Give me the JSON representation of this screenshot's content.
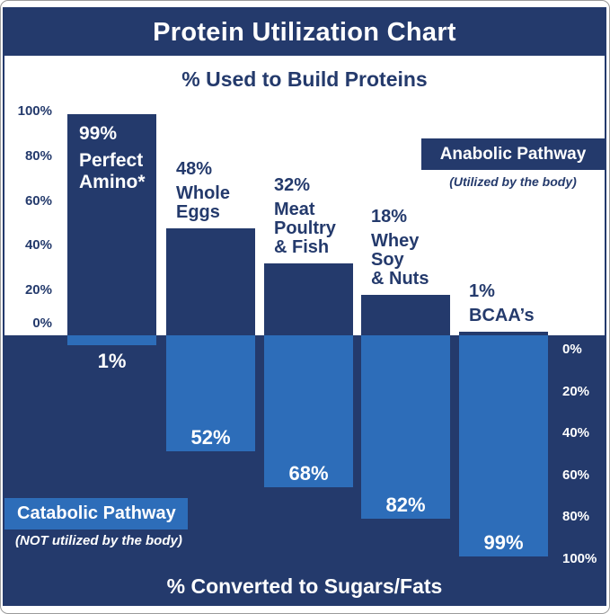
{
  "colors": {
    "navy": "#243a6c",
    "blue": "#2d6db9",
    "white": "#ffffff"
  },
  "header": {
    "title": "Protein Utilization Chart"
  },
  "subtitle": "% Used to Build Proteins",
  "bottom_axis_label": "% Converted to Sugars/Fats",
  "legend": {
    "anabolic": {
      "label": "Anabolic Pathway",
      "caption": "(Utilized by the body)"
    },
    "catabolic": {
      "label": "Catabolic Pathway",
      "caption": "(NOT utilized by the body)"
    }
  },
  "chart_data": {
    "type": "bar",
    "title": "Protein Utilization Chart",
    "top_section_label": "% Used to Build Proteins",
    "bottom_section_label": "% Converted to Sugars/Fats",
    "categories": [
      "Perfect Amino*",
      "Whole Eggs",
      "Meat Poultry & Fish",
      "Whey Soy & Nuts",
      "BCAA’s"
    ],
    "series": [
      {
        "name": "Anabolic Pathway",
        "note": "(Utilized by the body)",
        "values": [
          99,
          48,
          32,
          18,
          1
        ]
      },
      {
        "name": "Catabolic Pathway",
        "note": "(NOT utilized by the body)",
        "values": [
          1,
          52,
          68,
          82,
          99
        ]
      }
    ],
    "bars": [
      {
        "anabolic_label": "99%",
        "name_lines": [
          "Perfect",
          "Amino*"
        ],
        "anabolic": 99,
        "catabolic": 1,
        "catabolic_label": "1%",
        "label_inside": true
      },
      {
        "anabolic_label": "48%",
        "name_lines": [
          "Whole",
          "Eggs"
        ],
        "anabolic": 48,
        "catabolic": 52,
        "catabolic_label": "52%"
      },
      {
        "anabolic_label": "32%",
        "name_lines": [
          "Meat",
          "Poultry",
          "& Fish"
        ],
        "anabolic": 32,
        "catabolic": 68,
        "catabolic_label": "68%"
      },
      {
        "anabolic_label": "18%",
        "name_lines": [
          "Whey",
          "Soy",
          "& Nuts"
        ],
        "anabolic": 18,
        "catabolic": 82,
        "catabolic_label": "82%"
      },
      {
        "anabolic_label": "1%",
        "name_lines": [
          "BCAA’s"
        ],
        "anabolic": 1,
        "catabolic": 99,
        "catabolic_label": "99%"
      }
    ],
    "left_axis_ticks": [
      "100%",
      "80%",
      "60%",
      "40%",
      "20%",
      "0%"
    ],
    "right_axis_ticks": [
      "0%",
      "20%",
      "40%",
      "60%",
      "80%",
      "100%"
    ],
    "left_axis_range": [
      0,
      100
    ],
    "right_axis_range": [
      0,
      100
    ],
    "grid": false,
    "legend_position": {
      "anabolic": "top-right",
      "catabolic": "bottom-left"
    }
  }
}
